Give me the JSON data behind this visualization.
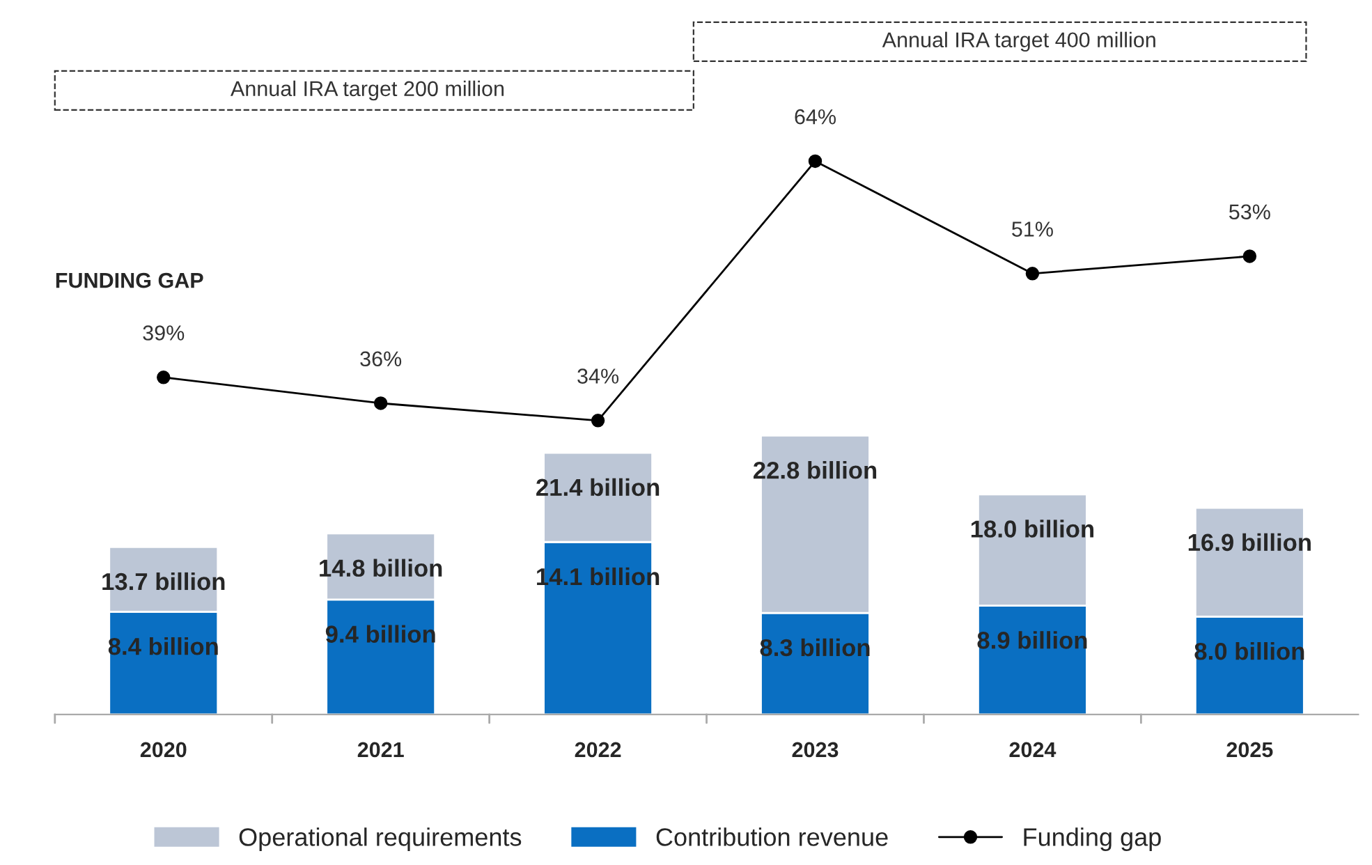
{
  "chart_data": [
    {
      "type": "line",
      "categories": [
        "2020",
        "2021",
        "2022",
        "2023",
        "2024",
        "2025"
      ],
      "series": [
        {
          "name": "Funding gap",
          "color": "#000000",
          "values": [
            39,
            36,
            34,
            64,
            51,
            53
          ],
          "value_labels": [
            "39%",
            "36%",
            "34%",
            "64%",
            "51%",
            "53%"
          ]
        }
      ],
      "tick_labels": false,
      "marker": "circle",
      "line_style": "solid",
      "annotations": [
        "FUNDING GAP",
        "Annual IRA target 200 million",
        "Annual IRA target 400 million"
      ]
    },
    {
      "type": "bar",
      "categories": [
        "2020",
        "2021",
        "2022",
        "2023",
        "2024",
        "2025"
      ],
      "stacked": true,
      "series": [
        {
          "name": "Contribution revenue",
          "color": "#0a6fc2",
          "values": [
            8.4,
            9.4,
            14.1,
            8.3,
            8.9,
            8.0
          ],
          "value_labels": [
            "8.4 billion",
            "9.4 billion",
            "14.1 billion",
            "8.3 billion",
            "8.9 billion",
            "8.0 billion"
          ]
        },
        {
          "name": "Operational requirements",
          "color": "#bcc6d6",
          "values": [
            5.3,
            5.4,
            7.3,
            14.5,
            9.1,
            8.9
          ]
        }
      ],
      "totals": [
        "13.7 billion",
        "14.8 billion",
        "21.4 billion",
        "22.8 billion",
        "18.0 billion",
        "16.9 billion"
      ],
      "tick_labels": "x",
      "grid": false,
      "legend": "bottom"
    }
  ]
}
